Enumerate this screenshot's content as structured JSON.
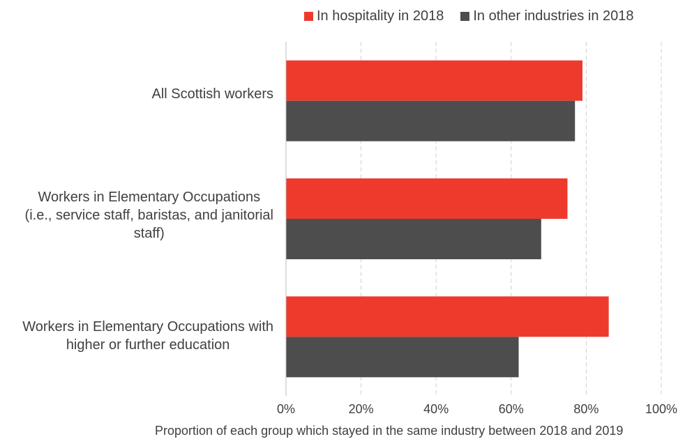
{
  "chart_data": {
    "type": "bar",
    "orientation": "horizontal",
    "categories": [
      [
        "All Scottish workers"
      ],
      [
        "Workers in Elementary Occupations",
        "(i.e., service staff, baristas, and janitorial",
        "staff)"
      ],
      [
        "Workers in Elementary Occupations with",
        "higher or further education"
      ]
    ],
    "series": [
      {
        "name": "In hospitality in 2018",
        "color": "#ee3a2d",
        "values": [
          79,
          75,
          86
        ]
      },
      {
        "name": "In other industries in 2018",
        "color": "#4d4d4d",
        "values": [
          77,
          68,
          62
        ]
      }
    ],
    "xlabel": "Proportion of each group which stayed in the same industry between 2018 and 2019",
    "xlim": [
      0,
      100
    ],
    "x_ticks": [
      "0%",
      "20%",
      "40%",
      "60%",
      "80%",
      "100%"
    ],
    "grid": "vertical dashed",
    "legend_position": "top"
  }
}
